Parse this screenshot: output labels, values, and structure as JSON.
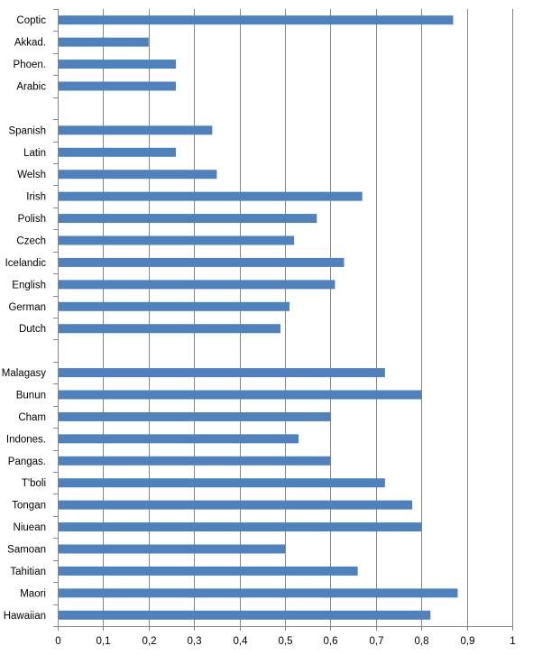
{
  "chart_data": {
    "type": "bar",
    "orientation": "horizontal",
    "categories": [
      "Coptic",
      "Akkad.",
      "Phoen.",
      "Arabic",
      "",
      "Spanish",
      "Latin",
      "Welsh",
      "Irish",
      "Polish",
      "Czech",
      "Icelandic",
      "English",
      "German",
      "Dutch",
      "",
      "Malagasy",
      "Bunun",
      "Cham",
      "Indones.",
      "Pangas.",
      "T'boli",
      "Tongan",
      "Niuean",
      "Samoan",
      "Tahitian",
      "Maori",
      "Hawaiian"
    ],
    "values": [
      0.87,
      0.2,
      0.26,
      0.26,
      null,
      0.34,
      0.26,
      0.35,
      0.67,
      0.57,
      0.52,
      0.63,
      0.61,
      0.51,
      0.49,
      null,
      0.72,
      0.8,
      0.6,
      0.53,
      0.6,
      0.72,
      0.78,
      0.8,
      0.5,
      0.66,
      0.88,
      0.82
    ],
    "xlim": [
      0,
      1
    ],
    "ticks": [
      "0",
      "0,1",
      "0,2",
      "0,3",
      "0,4",
      "0,5",
      "0,6",
      "0,7",
      "0,8",
      "0,9",
      "1"
    ],
    "grid": true,
    "bar_color": "#4f81bd",
    "gridline_color": "#868686"
  }
}
